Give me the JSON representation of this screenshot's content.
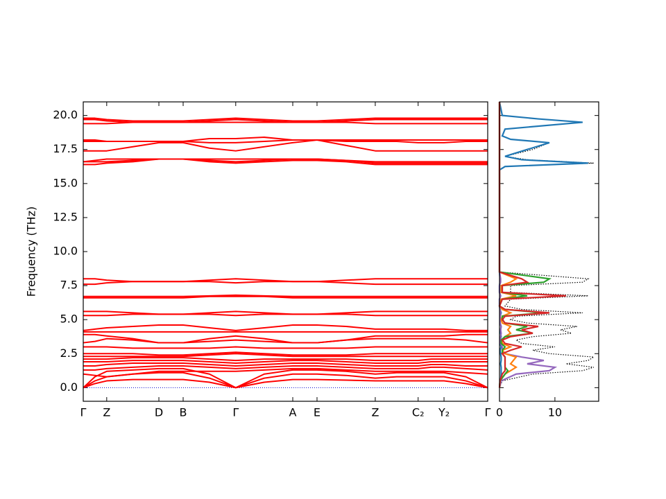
{
  "chart_data": [
    {
      "type": "band",
      "ylabel": "Frequency (THz)",
      "color": "#ff0000",
      "xlim": [
        0,
        1
      ],
      "ylim": [
        -1,
        21
      ],
      "xticks": [
        {
          "value": 0,
          "label": "Γ"
        },
        {
          "value": 0.058,
          "label": "Z"
        },
        {
          "value": 0.187,
          "label": "D"
        },
        {
          "value": 0.247,
          "label": "B"
        },
        {
          "value": 0.377,
          "label": "Γ"
        },
        {
          "value": 0.518,
          "label": "A"
        },
        {
          "value": 0.578,
          "label": "E"
        },
        {
          "value": 0.722,
          "label": "Z"
        },
        {
          "value": 0.828,
          "label": "C₂"
        },
        {
          "value": 0.892,
          "label": "Y₂"
        },
        {
          "value": 1.0,
          "label": "Γ"
        }
      ],
      "yticks": [
        {
          "value": 0,
          "label": "0.0"
        },
        {
          "value": 2.5,
          "label": "2.5"
        },
        {
          "value": 5,
          "label": "5.0"
        },
        {
          "value": 7.5,
          "label": "7.5"
        },
        {
          "value": 10,
          "label": "10.0"
        },
        {
          "value": 12.5,
          "label": "12.5"
        },
        {
          "value": 15,
          "label": "15.0"
        },
        {
          "value": 17.5,
          "label": "17.5"
        },
        {
          "value": 20,
          "label": "20.0"
        }
      ],
      "x": [
        0,
        0.029,
        0.058,
        0.1225,
        0.187,
        0.217,
        0.247,
        0.312,
        0.377,
        0.4475,
        0.518,
        0.548,
        0.578,
        0.65,
        0.722,
        0.775,
        0.828,
        0.86,
        0.892,
        0.946,
        1.0
      ],
      "bands": [
        [
          0,
          0.3,
          0.5,
          0.6,
          0.6,
          0.6,
          0.6,
          0.4,
          0,
          0.4,
          0.6,
          0.6,
          0.6,
          0.55,
          0.5,
          0.5,
          0.5,
          0.5,
          0.5,
          0.3,
          0
        ],
        [
          0,
          0.5,
          0.8,
          1.0,
          1.1,
          1.1,
          1.1,
          0.7,
          0,
          0.7,
          1.0,
          1.0,
          1.0,
          0.9,
          0.7,
          0.8,
          0.8,
          0.8,
          0.8,
          0.5,
          0
        ],
        [
          0,
          0.8,
          1.2,
          1.3,
          1.4,
          1.4,
          1.4,
          1.0,
          0,
          1.0,
          1.3,
          1.3,
          1.3,
          1.2,
          1.0,
          1.1,
          1.1,
          1.1,
          1.1,
          0.8,
          0
        ],
        [
          1.0,
          0.9,
          0.8,
          1.0,
          1.2,
          1.2,
          1.2,
          1.2,
          1.2,
          1.3,
          1.4,
          1.4,
          1.4,
          1.3,
          1.2,
          1.2,
          1.2,
          1.2,
          1.2,
          1.1,
          1.0
        ],
        [
          1.3,
          1.3,
          1.4,
          1.5,
          1.6,
          1.6,
          1.6,
          1.5,
          1.4,
          1.5,
          1.6,
          1.6,
          1.6,
          1.5,
          1.4,
          1.4,
          1.4,
          1.5,
          1.5,
          1.4,
          1.3
        ],
        [
          1.6,
          1.6,
          1.7,
          1.8,
          1.8,
          1.8,
          1.8,
          1.7,
          1.6,
          1.7,
          1.8,
          1.8,
          1.8,
          1.7,
          1.6,
          1.6,
          1.6,
          1.7,
          1.7,
          1.6,
          1.6
        ],
        [
          1.9,
          1.9,
          1.9,
          2.0,
          2.0,
          2.0,
          2.0,
          1.9,
          1.8,
          1.9,
          2.0,
          2.0,
          2.0,
          1.9,
          1.8,
          1.8,
          1.8,
          1.9,
          1.9,
          1.9,
          1.9
        ],
        [
          2.1,
          2.1,
          2.1,
          2.2,
          2.2,
          2.2,
          2.2,
          2.1,
          2.0,
          2.1,
          2.1,
          2.1,
          2.1,
          2.1,
          2.0,
          2.0,
          2.0,
          2.1,
          2.1,
          2.1,
          2.1
        ],
        [
          2.3,
          2.3,
          2.3,
          2.3,
          2.3,
          2.3,
          2.3,
          2.4,
          2.5,
          2.4,
          2.3,
          2.3,
          2.3,
          2.3,
          2.3,
          2.3,
          2.3,
          2.3,
          2.3,
          2.3,
          2.3
        ],
        [
          2.5,
          2.5,
          2.5,
          2.5,
          2.4,
          2.4,
          2.4,
          2.5,
          2.6,
          2.5,
          2.4,
          2.4,
          2.4,
          2.4,
          2.5,
          2.5,
          2.5,
          2.5,
          2.5,
          2.5,
          2.5
        ],
        [
          3.0,
          3.0,
          3.0,
          2.9,
          2.9,
          2.9,
          2.9,
          2.9,
          3.0,
          2.9,
          2.9,
          2.9,
          2.9,
          2.9,
          3.0,
          3.0,
          3.0,
          3.0,
          3.0,
          3.0,
          3.0
        ],
        [
          3.3,
          3.4,
          3.6,
          3.5,
          3.3,
          3.3,
          3.3,
          3.6,
          3.8,
          3.6,
          3.3,
          3.3,
          3.3,
          3.5,
          3.6,
          3.6,
          3.6,
          3.6,
          3.6,
          3.5,
          3.3
        ],
        [
          3.9,
          3.9,
          3.8,
          3.6,
          3.3,
          3.3,
          3.3,
          3.4,
          3.5,
          3.4,
          3.3,
          3.3,
          3.3,
          3.5,
          3.8,
          3.8,
          3.8,
          3.8,
          3.8,
          3.9,
          3.9
        ],
        [
          4.1,
          4.1,
          4.1,
          4.1,
          4.1,
          4.1,
          4.1,
          4.1,
          4.1,
          4.1,
          4.1,
          4.1,
          4.1,
          4.1,
          4.1,
          4.1,
          4.1,
          4.1,
          4.1,
          4.1,
          4.1
        ],
        [
          4.2,
          4.3,
          4.4,
          4.5,
          4.6,
          4.6,
          4.6,
          4.4,
          4.2,
          4.4,
          4.6,
          4.6,
          4.6,
          4.5,
          4.3,
          4.3,
          4.3,
          4.3,
          4.3,
          4.2,
          4.2
        ],
        [
          5.3,
          5.3,
          5.3,
          5.4,
          5.4,
          5.4,
          5.4,
          5.4,
          5.3,
          5.4,
          5.4,
          5.4,
          5.4,
          5.4,
          5.3,
          5.3,
          5.3,
          5.3,
          5.3,
          5.3,
          5.3
        ],
        [
          5.6,
          5.6,
          5.6,
          5.5,
          5.4,
          5.4,
          5.4,
          5.5,
          5.6,
          5.5,
          5.4,
          5.4,
          5.4,
          5.5,
          5.6,
          5.6,
          5.6,
          5.6,
          5.6,
          5.6,
          5.6
        ],
        [
          6.6,
          6.6,
          6.6,
          6.6,
          6.6,
          6.6,
          6.6,
          6.7,
          6.7,
          6.7,
          6.6,
          6.6,
          6.6,
          6.6,
          6.6,
          6.6,
          6.6,
          6.6,
          6.6,
          6.6,
          6.6
        ],
        [
          6.7,
          6.7,
          6.7,
          6.7,
          6.7,
          6.7,
          6.7,
          6.75,
          6.8,
          6.75,
          6.7,
          6.7,
          6.7,
          6.7,
          6.7,
          6.7,
          6.7,
          6.7,
          6.7,
          6.7,
          6.7
        ],
        [
          7.6,
          7.6,
          7.7,
          7.8,
          7.8,
          7.8,
          7.8,
          7.8,
          7.7,
          7.8,
          7.8,
          7.8,
          7.8,
          7.7,
          7.6,
          7.6,
          7.6,
          7.6,
          7.6,
          7.6,
          7.6
        ],
        [
          8.0,
          8.0,
          7.9,
          7.8,
          7.8,
          7.8,
          7.8,
          7.9,
          8.0,
          7.9,
          7.8,
          7.8,
          7.8,
          7.9,
          8.0,
          8.0,
          8.0,
          8.0,
          8.0,
          8.0,
          8.0
        ],
        [
          16.4,
          16.4,
          16.5,
          16.6,
          16.8,
          16.8,
          16.8,
          16.6,
          16.5,
          16.6,
          16.7,
          16.7,
          16.7,
          16.6,
          16.4,
          16.4,
          16.4,
          16.4,
          16.4,
          16.4,
          16.4
        ],
        [
          16.6,
          16.6,
          16.6,
          16.7,
          16.8,
          16.8,
          16.8,
          16.8,
          16.8,
          16.8,
          16.8,
          16.8,
          16.8,
          16.7,
          16.5,
          16.5,
          16.5,
          16.5,
          16.5,
          16.5,
          16.5
        ],
        [
          16.6,
          16.7,
          16.8,
          16.8,
          16.8,
          16.8,
          16.8,
          16.7,
          16.6,
          16.7,
          16.8,
          16.8,
          16.8,
          16.7,
          16.6,
          16.6,
          16.6,
          16.6,
          16.6,
          16.6,
          16.6
        ],
        [
          17.4,
          17.4,
          17.4,
          17.7,
          18.0,
          18.0,
          18.0,
          17.6,
          17.4,
          17.7,
          18.0,
          18.1,
          18.2,
          17.8,
          17.4,
          17.4,
          17.4,
          17.4,
          17.4,
          17.4,
          17.4
        ],
        [
          18.1,
          18.1,
          18.1,
          18.1,
          18.1,
          18.1,
          18.1,
          18.0,
          18.0,
          18.1,
          18.2,
          18.2,
          18.2,
          18.1,
          18.1,
          18.1,
          18.0,
          18.0,
          18.0,
          18.1,
          18.1
        ],
        [
          18.2,
          18.2,
          18.1,
          18.1,
          18.1,
          18.1,
          18.1,
          18.3,
          18.3,
          18.4,
          18.2,
          18.2,
          18.2,
          18.2,
          18.2,
          18.2,
          18.2,
          18.2,
          18.2,
          18.2,
          18.2
        ],
        [
          19.4,
          19.4,
          19.4,
          19.5,
          19.5,
          19.5,
          19.5,
          19.5,
          19.5,
          19.5,
          19.5,
          19.5,
          19.5,
          19.5,
          19.4,
          19.4,
          19.4,
          19.4,
          19.4,
          19.4,
          19.4
        ],
        [
          19.7,
          19.7,
          19.6,
          19.5,
          19.5,
          19.5,
          19.5,
          19.6,
          19.7,
          19.6,
          19.5,
          19.5,
          19.5,
          19.6,
          19.7,
          19.7,
          19.7,
          19.7,
          19.7,
          19.7,
          19.7
        ],
        [
          19.8,
          19.8,
          19.7,
          19.6,
          19.6,
          19.6,
          19.6,
          19.7,
          19.8,
          19.7,
          19.6,
          19.6,
          19.6,
          19.7,
          19.8,
          19.8,
          19.8,
          19.8,
          19.8,
          19.8,
          19.8
        ]
      ]
    },
    {
      "type": "dos",
      "xlim": [
        0,
        17.9
      ],
      "ylim": [
        -1,
        21
      ],
      "xticks": [
        0,
        10
      ],
      "frequency": [
        0,
        0.5,
        1.0,
        1.25,
        1.5,
        1.75,
        2.0,
        2.25,
        2.5,
        2.75,
        3.0,
        3.25,
        3.5,
        3.75,
        4.0,
        4.25,
        4.5,
        4.75,
        5.0,
        5.25,
        5.5,
        5.75,
        6.0,
        6.5,
        6.75,
        7.0,
        7.5,
        7.75,
        8.0,
        8.5,
        10,
        15,
        16,
        16.25,
        16.5,
        16.75,
        17,
        17.5,
        18,
        18.25,
        18.5,
        19,
        19.5,
        19.75,
        20,
        21
      ],
      "series": [
        {
          "color": "#000000",
          "style": "dotted",
          "values": [
            0,
            0.5,
            6,
            15,
            17,
            12,
            16,
            17,
            9,
            6,
            10,
            4,
            3,
            6,
            13,
            11,
            14,
            5,
            2,
            3,
            15,
            4,
            1,
            2,
            16,
            2,
            2,
            15,
            16,
            0,
            0,
            0,
            0,
            1,
            17,
            5,
            1,
            6,
            9,
            2,
            0.5,
            1,
            15,
            7,
            0.5,
            0
          ]
        },
        {
          "color": "#1f77b4",
          "style": "solid",
          "values": [
            0,
            0.2,
            0.3,
            0.3,
            0.3,
            0.2,
            0.3,
            0.3,
            0.2,
            0.1,
            0.3,
            0.1,
            0.1,
            0.3,
            0.2,
            0.2,
            0.3,
            0.1,
            0.1,
            0.1,
            0.3,
            0.1,
            0,
            0,
            0.2,
            0,
            0,
            0.1,
            0.1,
            0,
            0,
            0,
            0,
            1,
            16,
            4,
            1,
            5,
            9,
            2,
            0.5,
            1,
            15,
            7,
            0.5,
            0
          ]
        },
        {
          "color": "#9467bd",
          "style": "solid",
          "values": [
            0,
            0.3,
            3,
            9,
            10,
            5,
            8,
            4,
            1,
            0.5,
            0.5,
            0.2,
            0.2,
            0.2,
            0.3,
            0.2,
            0.3,
            0.1,
            0.1,
            0.1,
            0.2,
            0.1,
            0,
            0,
            0.2,
            0,
            0,
            0.2,
            0.2,
            0,
            0,
            0,
            0,
            0,
            0,
            0,
            0,
            0,
            0,
            0,
            0,
            0,
            0,
            0,
            0,
            0
          ]
        },
        {
          "color": "#ff7f0e",
          "style": "solid",
          "values": [
            0,
            0.1,
            1,
            2,
            3,
            2,
            2.5,
            3,
            1,
            0.5,
            2,
            0.5,
            0.5,
            1,
            2,
            1.5,
            2,
            0.5,
            0.3,
            0.5,
            2,
            0.5,
            0,
            0.3,
            3,
            0.3,
            0.3,
            2,
            3,
            0,
            0,
            0,
            0,
            0,
            0,
            0,
            0,
            0,
            0,
            0,
            0,
            0,
            0,
            0,
            0,
            0
          ]
        },
        {
          "color": "#2ca02c",
          "style": "solid",
          "values": [
            0,
            0.1,
            1,
            1.5,
            1,
            1,
            1,
            1,
            0.5,
            0.5,
            1,
            0.3,
            0.3,
            1,
            6,
            3,
            5,
            1,
            0.5,
            0.5,
            8,
            1,
            0,
            0.5,
            5,
            0.5,
            0.5,
            8,
            9,
            0,
            0,
            0,
            0,
            0,
            0,
            0,
            0,
            0,
            0,
            0,
            0,
            0,
            0,
            0,
            0,
            0
          ]
        },
        {
          "color": "#d62728",
          "style": "solid",
          "values": [
            0,
            0.1,
            0.5,
            1,
            1,
            1,
            1,
            1,
            0.5,
            2,
            4,
            1,
            0.5,
            2,
            6,
            4,
            7,
            1,
            0.5,
            1,
            9,
            1,
            0,
            0.5,
            12,
            0.5,
            0.5,
            5,
            4,
            0,
            0,
            0,
            0,
            0,
            0,
            0,
            0,
            0,
            0,
            0,
            0,
            0,
            0,
            0,
            0,
            0
          ]
        }
      ]
    }
  ]
}
